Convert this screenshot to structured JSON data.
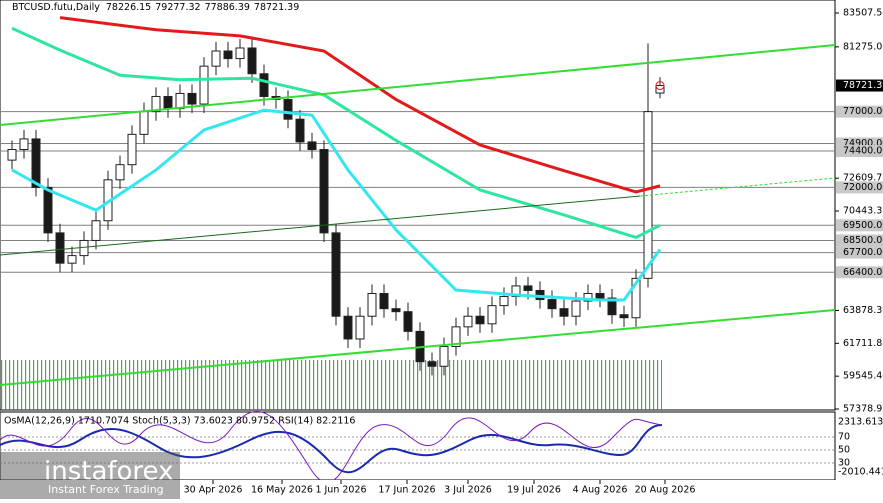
{
  "chart_data": {
    "type": "candlestick",
    "title": "BTCUSD.futu,Daily",
    "up_color": "#ffffff",
    "down_color": "#1a1a1a",
    "ylim": [
      57378.95,
      83507.5
    ],
    "yticks": [
      {
        "value": 83507.5,
        "label": "83507.50"
      },
      {
        "value": 81275.0,
        "label": "81275.00"
      },
      {
        "value": 72609.75,
        "label": "72609.75"
      },
      {
        "value": 70443.3,
        "label": "70443.30"
      },
      {
        "value": 63878.3,
        "label": "63878.30"
      },
      {
        "value": 61711.85,
        "label": "61711.85"
      },
      {
        "value": 59545.4,
        "label": "59545.40"
      },
      {
        "value": 57378.95,
        "label": "57378.95"
      }
    ],
    "levels": [
      {
        "value": 77000,
        "label": "77000.00"
      },
      {
        "value": 74900,
        "label": "74900.00"
      },
      {
        "value": 74400,
        "label": "74400.00"
      },
      {
        "value": 72000,
        "label": "72000.00"
      },
      {
        "value": 69500,
        "label": "69500.00"
      },
      {
        "value": 68500,
        "label": "68500.00"
      },
      {
        "value": 67700,
        "label": "67700.00"
      },
      {
        "value": 66400,
        "label": "66400.00"
      }
    ],
    "open": [
      73800,
      74500,
      75200,
      72000,
      69000,
      67000,
      67500,
      68500,
      69800,
      72500,
      73500,
      75500,
      77000,
      78000,
      77200,
      78200,
      77500,
      80000,
      81000,
      80500,
      81200,
      79500,
      78000,
      77800,
      76500,
      75000,
      74500,
      69000,
      63500,
      62000,
      63500,
      65000,
      64000,
      63800,
      62500,
      60500,
      60200,
      61500,
      62800,
      63500,
      63000,
      64200,
      64800,
      65500,
      65200,
      64600,
      64000,
      63500,
      64500,
      65000,
      64700,
      63600,
      63400,
      66000,
      78226.15
    ],
    "high": [
      75100,
      75800,
      75800,
      72600,
      69600,
      68100,
      69100,
      70400,
      73100,
      74100,
      76100,
      77600,
      78600,
      78600,
      78800,
      78800,
      80600,
      81600,
      81600,
      81800,
      81800,
      80100,
      78600,
      78400,
      77100,
      75600,
      75100,
      69600,
      64100,
      64100,
      65600,
      65600,
      64600,
      64400,
      63100,
      61100,
      62100,
      63400,
      64100,
      64100,
      64800,
      65400,
      66100,
      66100,
      65800,
      65200,
      64600,
      65100,
      65600,
      65600,
      65300,
      64200,
      66600,
      81500,
      79277.32
    ],
    "low": [
      73200,
      73900,
      71400,
      68400,
      66400,
      66400,
      66900,
      67900,
      69200,
      71900,
      72900,
      74900,
      76400,
      76600,
      76600,
      76900,
      76900,
      79400,
      79900,
      79900,
      78900,
      77400,
      77200,
      75900,
      74400,
      73900,
      68400,
      62900,
      61400,
      61400,
      62900,
      63400,
      63200,
      61900,
      59900,
      59600,
      59600,
      60900,
      62200,
      62400,
      62400,
      63600,
      64200,
      64600,
      64000,
      63400,
      62900,
      62900,
      63900,
      64100,
      63000,
      62800,
      62800,
      65400,
      77886.39
    ],
    "close": [
      74500,
      75200,
      72000,
      69000,
      67000,
      67500,
      68500,
      69800,
      72500,
      73500,
      75500,
      77000,
      78000,
      77200,
      78200,
      77500,
      80000,
      81000,
      80500,
      81200,
      79500,
      78000,
      77800,
      76500,
      75000,
      74500,
      69000,
      63500,
      62000,
      63500,
      65000,
      64000,
      63800,
      62500,
      60500,
      60200,
      61500,
      62800,
      63500,
      63000,
      64200,
      64800,
      65500,
      65200,
      64600,
      64000,
      63500,
      64500,
      65000,
      64700,
      63600,
      63400,
      66000,
      77000,
      78721.39
    ],
    "moving_averages": [
      {
        "color": "#e31a1c",
        "x": [
          4,
          12,
          19,
          26,
          32,
          39,
          46,
          52,
          54
        ],
        "values": [
          83200,
          82400,
          82000,
          81000,
          77800,
          74800,
          73100,
          71700,
          72100
        ]
      },
      {
        "color": "#2ee6a0",
        "x": [
          0,
          4,
          9,
          14,
          20,
          26,
          32,
          39,
          46,
          52,
          54
        ],
        "values": [
          82500,
          81060,
          79400,
          79100,
          79200,
          78100,
          75100,
          71830,
          70180,
          68700,
          69500
        ]
      },
      {
        "color": "#33e6f0",
        "x": [
          0,
          3,
          7,
          12,
          16,
          21,
          25,
          28,
          32,
          37,
          42,
          49,
          51,
          54
        ],
        "values": [
          73150,
          71830,
          70500,
          73150,
          75790,
          77100,
          76770,
          73150,
          69200,
          65230,
          64900,
          64570,
          64570,
          67900
        ]
      }
    ],
    "x_labels": [
      "30 Apr 2026",
      "16 May 2026",
      "1 Jun 2026",
      "17 Jun 2026",
      "3 Jul 2026",
      "19 Jul 2026",
      "4 Aug 2026",
      "20 Aug 2026"
    ],
    "oscillator": {
      "label": "OsMA(12,26,9) 1710.7074 Stoch(5,3,3) 73.6023 80.9752 RSI(14) 82.2116",
      "scale_labels": [
        "2313.6133",
        "70",
        "50",
        "30",
        "-2010.441"
      ]
    },
    "watermark": {
      "brand": "instaforex",
      "tagline": "Instant Forex Trading"
    }
  }
}
